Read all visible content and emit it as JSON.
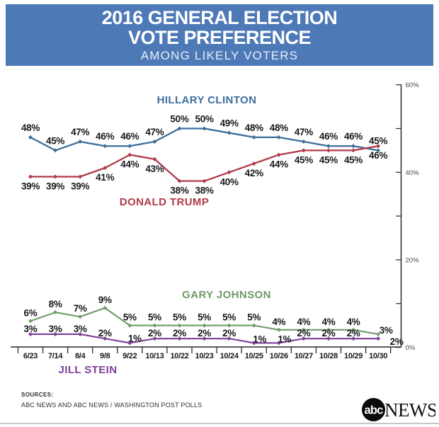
{
  "header": {
    "title_line1": "2016 GENERAL ELECTION",
    "title_line2": "VOTE PREFERENCE",
    "subtitle": "AMONG LIKELY VOTERS",
    "bg_color": "#4d79b7",
    "text_color": "#ffffff"
  },
  "chart_data": {
    "type": "line",
    "title": "2016 GENERAL ELECTION VOTE PREFERENCE",
    "subtitle": "AMONG LIKELY VOTERS",
    "categories": [
      "6/23",
      "7/14",
      "8/4",
      "9/8",
      "9/22",
      "10/13",
      "10/22",
      "10/23",
      "10/24",
      "10/25",
      "10/26",
      "10/27",
      "10/28",
      "10/29",
      "10/30"
    ],
    "series": [
      {
        "name": "HILLARY CLINTON",
        "color": "#3c6e9b",
        "values": [
          48,
          45,
          47,
          46,
          46,
          47,
          50,
          50,
          49,
          48,
          48,
          47,
          46,
          46,
          45
        ],
        "label_position": "above"
      },
      {
        "name": "DONALD TRUMP",
        "color": "#b13a49",
        "values": [
          39,
          39,
          39,
          41,
          44,
          43,
          38,
          38,
          40,
          42,
          44,
          45,
          45,
          45,
          46
        ],
        "label_position": "below"
      },
      {
        "name": "GARY JOHNSON",
        "color": "#709c69",
        "values": [
          6,
          8,
          7,
          9,
          5,
          5,
          5,
          5,
          5,
          5,
          4,
          4,
          4,
          4,
          3
        ],
        "label_position": "above"
      },
      {
        "name": "JILL STEIN",
        "color": "#7c3f99",
        "values": [
          3,
          3,
          3,
          2,
          1,
          2,
          2,
          2,
          2,
          1,
          1,
          2,
          2,
          2,
          2
        ],
        "label_position": "above"
      }
    ],
    "xlabel": "",
    "ylabel": "",
    "ylim": [
      0,
      60
    ],
    "yticks": {
      "step": 10,
      "labeled": [
        {
          "value": 60,
          "label": "60%"
        },
        {
          "value": 40,
          "label": "40%"
        },
        {
          "value": 20,
          "label": "20%"
        },
        {
          "value": 0,
          "label": "0%"
        }
      ]
    },
    "grid": false,
    "legend": "inline series-name annotations near each line",
    "value_labels_shown": true,
    "axis_side": "right"
  },
  "footer": {
    "sources_label": "SOURCES:",
    "sources_text": "ABC NEWS AND ABC NEWS / WASHINGTON POST POLLS",
    "logo_abc": "abc",
    "logo_news": "NEWS"
  }
}
